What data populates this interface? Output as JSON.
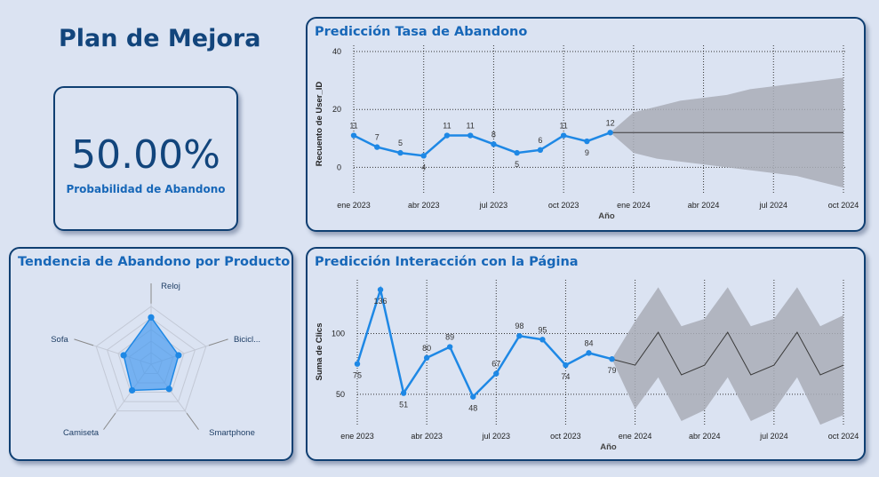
{
  "page_title": "Plan de Mejora",
  "kpi": {
    "value": "50.00%",
    "label": "Probabilidad de Abandono"
  },
  "colors": {
    "accent": "#1e88e5",
    "forecast_band": "#a9adb7",
    "forecast_line": "#3a3a3a",
    "title": "#12457c",
    "card_title": "#1767b8"
  },
  "chart_data": [
    {
      "type": "line",
      "title": "Predicción Tasa de Abandono",
      "xlabel": "Año",
      "ylabel": "Recuento de User_ID",
      "ylim": [
        -10,
        40
      ],
      "yticks": [
        0,
        20,
        40
      ],
      "xticks": [
        "ene 2023",
        "abr 2023",
        "jul 2023",
        "oct 2023",
        "ene 2024",
        "abr 2024",
        "jul 2024",
        "oct 2024"
      ],
      "x": [
        "2023-01",
        "2023-02",
        "2023-03",
        "2023-04",
        "2023-05",
        "2023-06",
        "2023-07",
        "2023-08",
        "2023-09",
        "2023-10",
        "2023-11",
        "2023-12"
      ],
      "values": [
        11,
        7,
        5,
        4,
        11,
        11,
        8,
        5,
        6,
        11,
        9,
        12
      ],
      "forecast": {
        "x": [
          "2023-12",
          "2024-01",
          "2024-02",
          "2024-03",
          "2024-04",
          "2024-05",
          "2024-06",
          "2024-07",
          "2024-08",
          "2024-09",
          "2024-10"
        ],
        "values": [
          12,
          12,
          12,
          12,
          12,
          12,
          12,
          12,
          12,
          12,
          12
        ],
        "upper": [
          12,
          19,
          21,
          23,
          24,
          25,
          27,
          28,
          29,
          30,
          31
        ],
        "lower": [
          12,
          5,
          3,
          2,
          1,
          0,
          -1,
          -2,
          -3,
          -5,
          -7
        ]
      },
      "grid": true
    },
    {
      "type": "radar",
      "title": "Tendencia de Abandono por Producto",
      "categories": [
        "Reloj",
        "Bicicl...",
        "Smartphone",
        "Camiseta",
        "Sofa"
      ],
      "values": [
        0.81,
        0.5,
        0.53,
        0.56,
        0.5
      ],
      "grid": true
    },
    {
      "type": "line",
      "title": "Predicción Interacción con la Página",
      "xlabel": "Año",
      "ylabel": "Suma de Clics",
      "ylim": [
        20,
        150
      ],
      "yticks": [
        50,
        100
      ],
      "xticks": [
        "ene 2023",
        "abr 2023",
        "jul 2023",
        "oct 2023",
        "ene 2024",
        "abr 2024",
        "jul 2024",
        "oct 2024"
      ],
      "x": [
        "2023-01",
        "2023-02",
        "2023-03",
        "2023-04",
        "2023-05",
        "2023-06",
        "2023-07",
        "2023-08",
        "2023-09",
        "2023-10",
        "2023-11",
        "2023-12"
      ],
      "values": [
        75,
        136,
        51,
        80,
        89,
        48,
        67,
        98,
        95,
        74,
        84,
        79
      ],
      "forecast": {
        "x": [
          "2023-12",
          "2024-01",
          "2024-02",
          "2024-03",
          "2024-04",
          "2024-05",
          "2024-06",
          "2024-07",
          "2024-08",
          "2024-09",
          "2024-10"
        ],
        "values": [
          79,
          74,
          101,
          66,
          74,
          101,
          66,
          74,
          101,
          66,
          74
        ],
        "upper": [
          79,
          110,
          138,
          106,
          112,
          138,
          106,
          112,
          138,
          106,
          115
        ],
        "lower": [
          79,
          38,
          64,
          28,
          37,
          64,
          28,
          37,
          64,
          25,
          33
        ]
      },
      "grid": true
    }
  ]
}
